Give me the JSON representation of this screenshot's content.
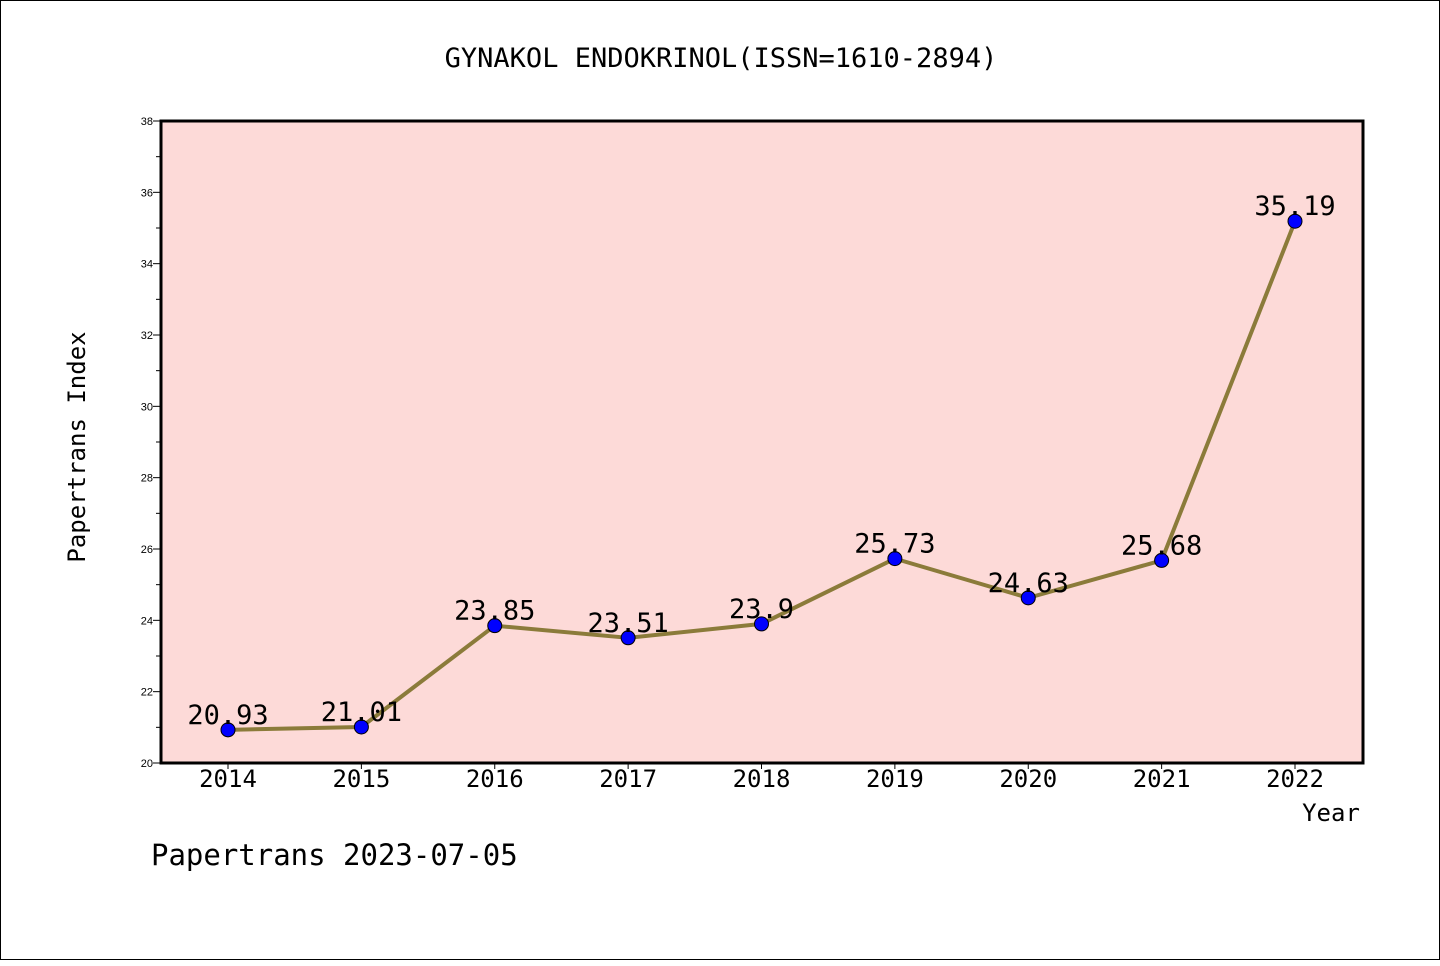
{
  "chart_data": {
    "type": "line",
    "title": "GYNAKOL ENDOKRINOL(ISSN=1610-2894)",
    "xlabel": "Year",
    "ylabel": "Papertrans Index",
    "categories": [
      "2014",
      "2015",
      "2016",
      "2017",
      "2018",
      "2019",
      "2020",
      "2021",
      "2022"
    ],
    "series": [
      {
        "values": [
          20.93,
          21.01,
          23.85,
          23.51,
          23.9,
          25.73,
          24.63,
          25.68,
          35.19
        ],
        "labels": [
          "20.93",
          "21.01",
          "23.85",
          "23.51",
          "23.9",
          "25.73",
          "24.63",
          "25.68",
          "35.19"
        ]
      }
    ],
    "ylim": [
      20,
      38
    ],
    "yticks": [
      "20",
      "22",
      "24",
      "26",
      "28",
      "30",
      "32",
      "34",
      "36",
      "38"
    ],
    "grid": false,
    "colors": {
      "plot_background": "#fddad8",
      "line": "#8b7b3a",
      "marker": "#0000ff"
    }
  },
  "footer": {
    "text": "Papertrans 2023-07-05"
  }
}
